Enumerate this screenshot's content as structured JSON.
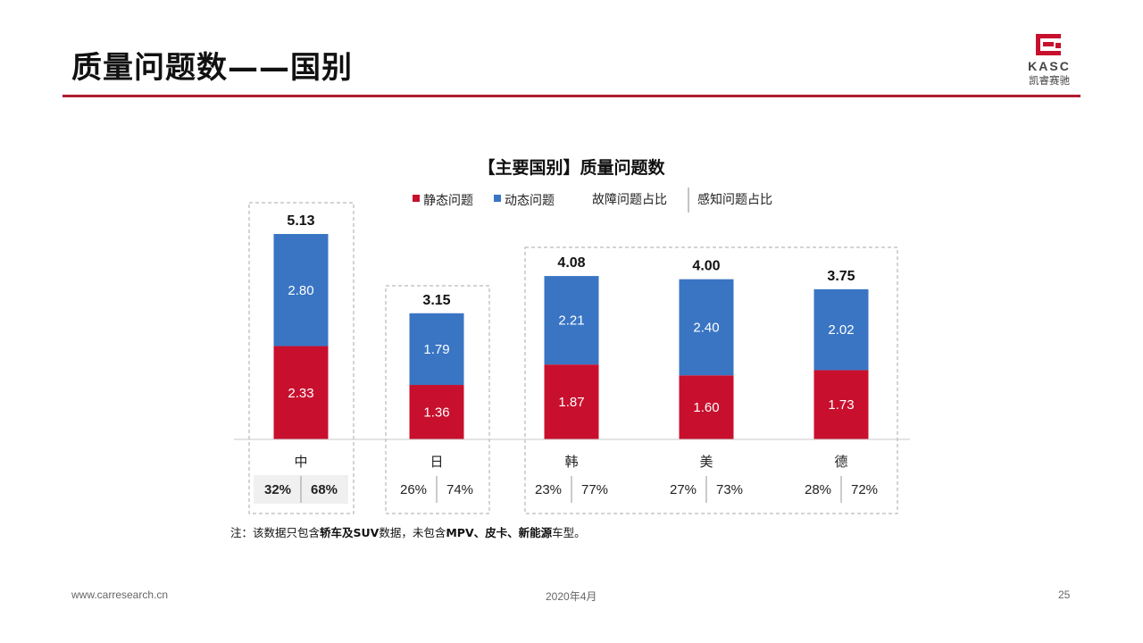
{
  "header": {
    "title": "质量问题数——国别",
    "logo": {
      "brand": "KASC",
      "name": "凯睿赛驰"
    }
  },
  "chart_data": {
    "type": "bar",
    "stacked": true,
    "title": "【主要国别】质量问题数",
    "categories": [
      "中",
      "日",
      "韩",
      "美",
      "德"
    ],
    "series": [
      {
        "name": "静态问题",
        "color": "#c8102e",
        "values": [
          2.33,
          1.36,
          1.87,
          1.6,
          1.73
        ]
      },
      {
        "name": "动态问题",
        "color": "#3a75c4",
        "values": [
          2.8,
          1.79,
          2.21,
          2.4,
          2.02
        ]
      }
    ],
    "totals": [
      5.13,
      3.15,
      4.08,
      4.0,
      3.75
    ],
    "legend_extra": [
      "故障问题占比",
      "感知问题占比"
    ],
    "fault_share": [
      "32%",
      "26%",
      "23%",
      "27%",
      "28%"
    ],
    "perceived_share": [
      "68%",
      "74%",
      "77%",
      "73%",
      "72%"
    ],
    "highlight_category": "中",
    "ylim": [
      0,
      5.13
    ]
  },
  "note": {
    "prefix": "注：该数据只包含",
    "b1": "轿车及SUV",
    "mid": "数据，未包含",
    "b2": "MPV、皮卡、新能源",
    "suffix": "车型。"
  },
  "footer": {
    "url": "www.carresearch.cn",
    "date": "2020年4月",
    "page": "25"
  }
}
